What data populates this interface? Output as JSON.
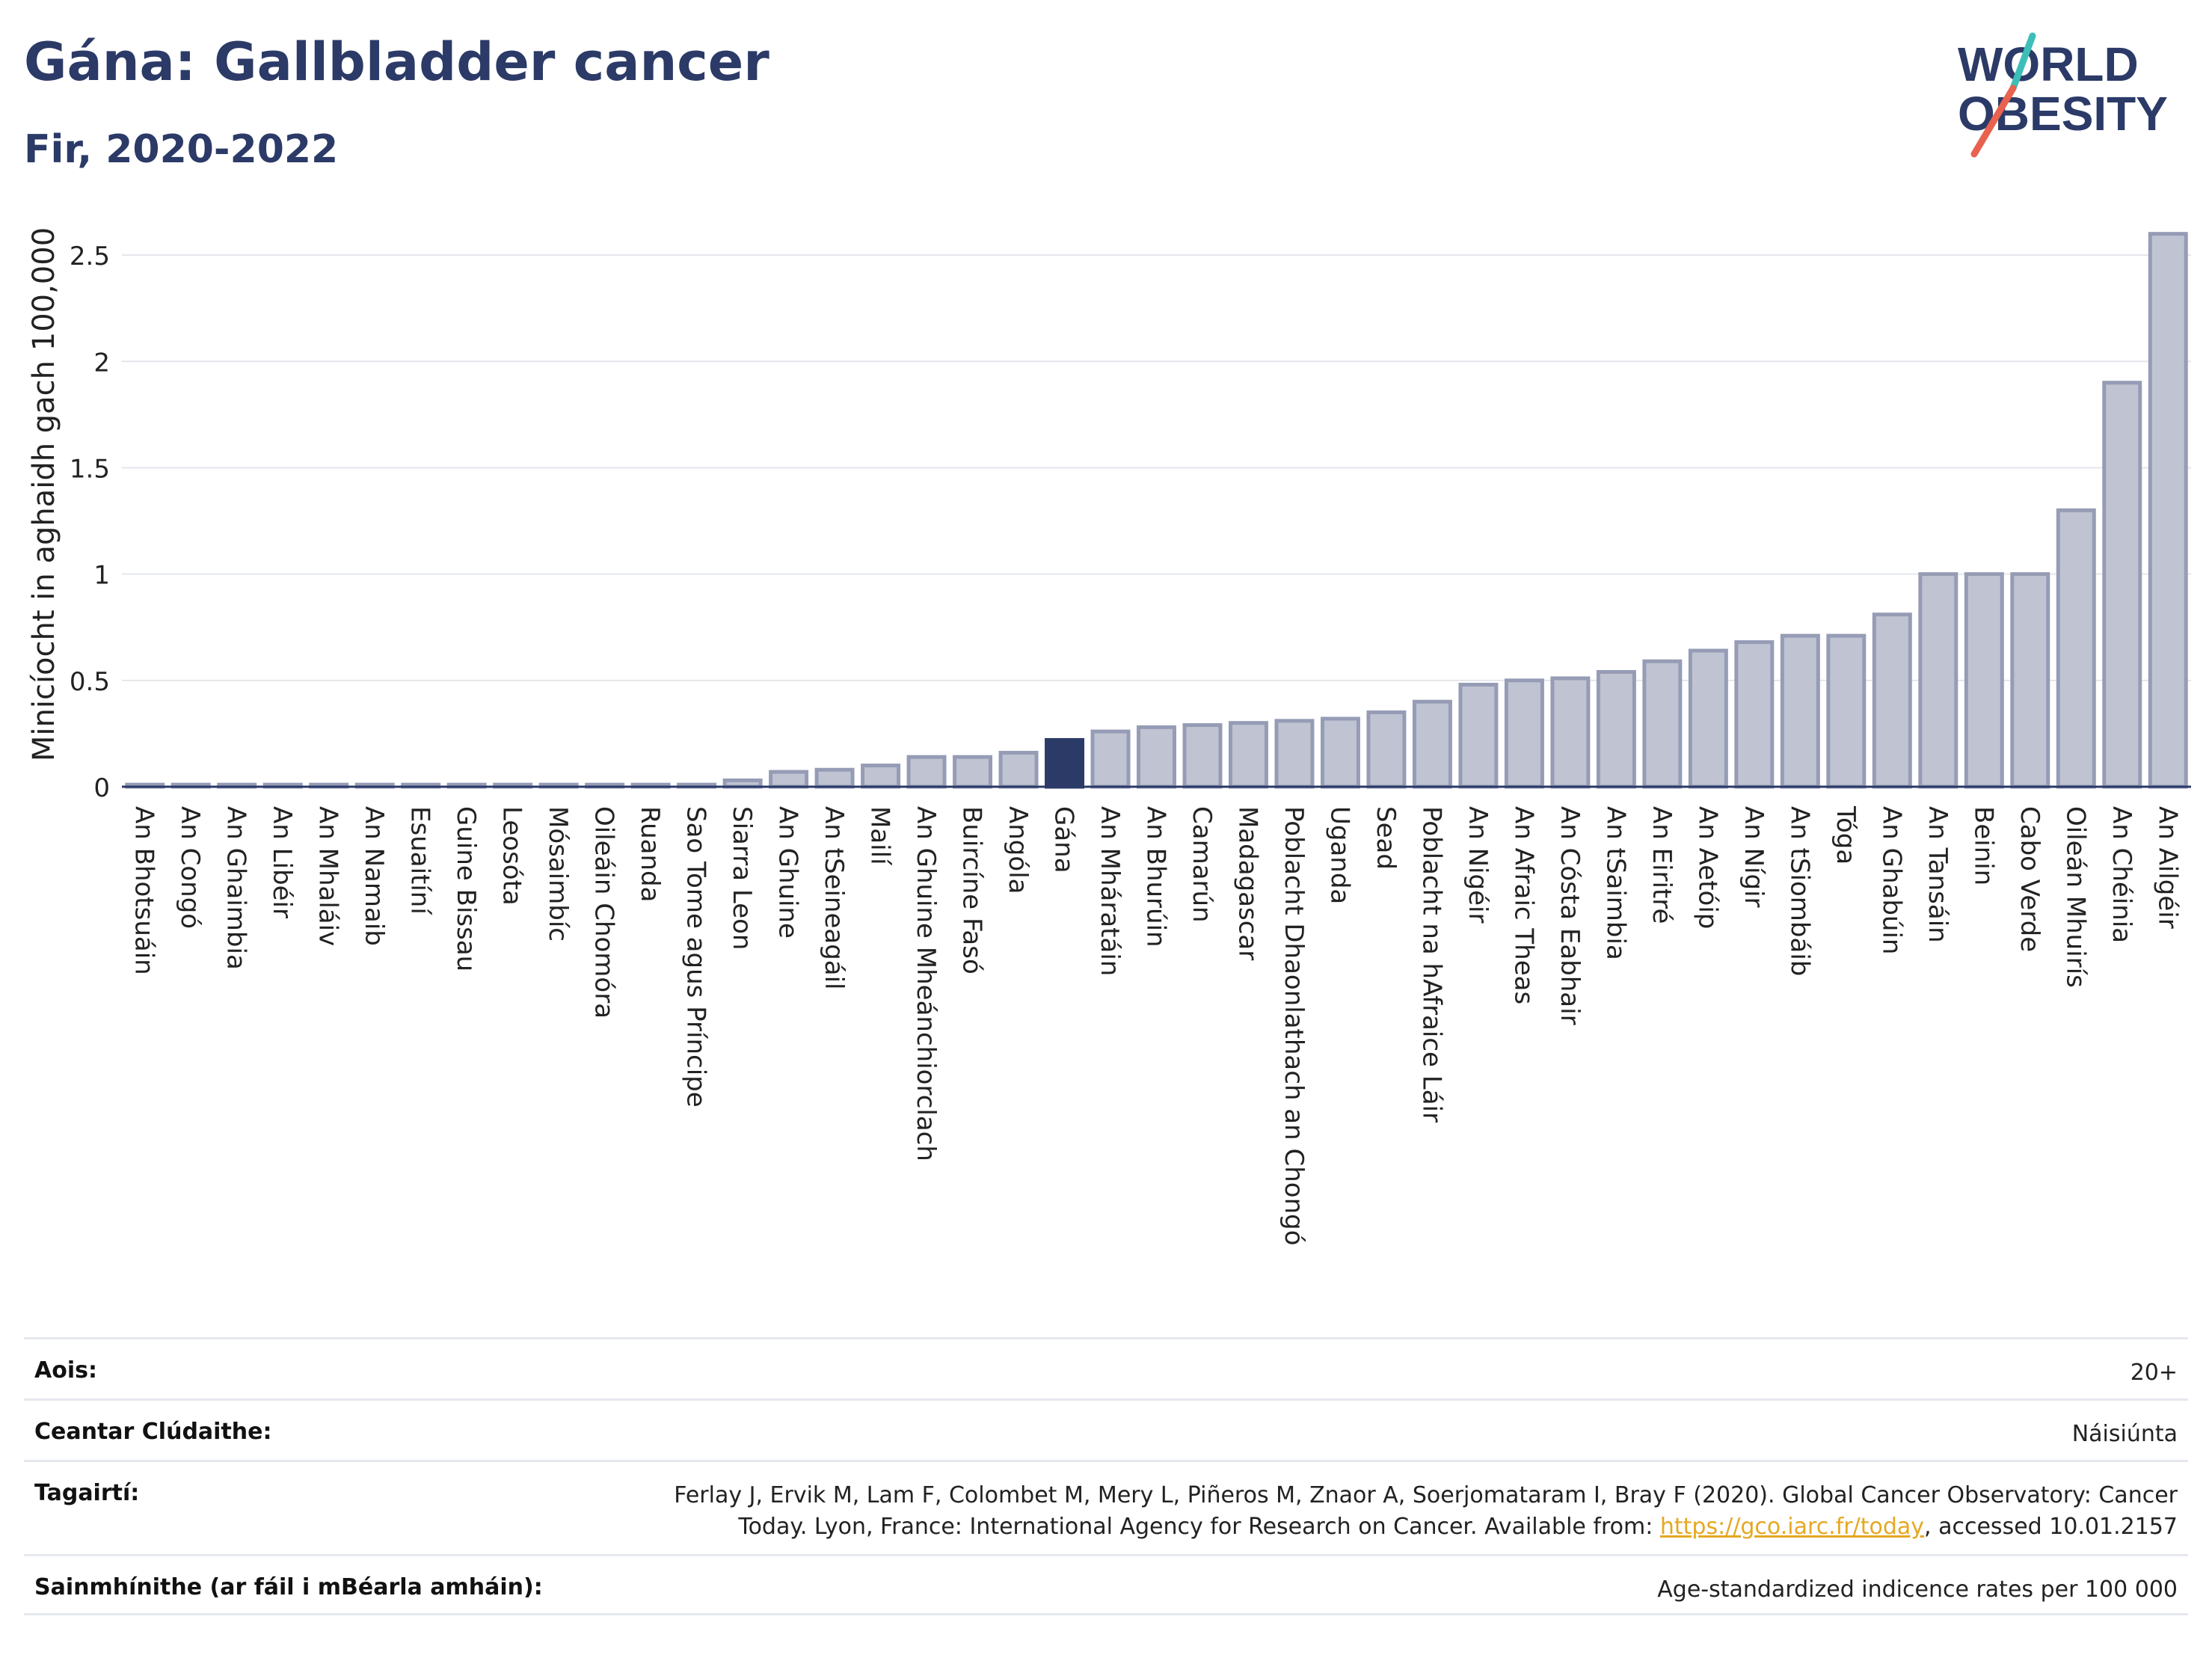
{
  "title": "Gána: Gallbladder cancer",
  "subtitle": "Fir, 2020-2022",
  "logo": {
    "line1": "WORLD",
    "line2": "OBESITY",
    "slash_colors": [
      "#3dbfb8",
      "#e8624f"
    ],
    "text_color": "#2b3a67"
  },
  "colors": {
    "bar": "#bfc3d2",
    "bar_border": "#969cb5",
    "highlight": "#2b3a67",
    "grid": "#e4e6ec",
    "axis": "#2b3a67"
  },
  "chart_data": {
    "type": "bar",
    "ylabel": "Minicíocht in aghaidh gach 100,000",
    "ylim": [
      0,
      2.75
    ],
    "yticks": [
      0,
      0.5,
      1,
      1.5,
      2,
      2.5
    ],
    "ytick_labels": [
      "0",
      "0.5",
      "1",
      "1.5",
      "2",
      "2.5"
    ],
    "grid": true,
    "highlight": "Gána",
    "categories": [
      "An Bhotsuáin",
      "An Congó",
      "An Ghaimbia",
      "An Libéir",
      "An Mhaláiv",
      "An Namaib",
      "Esuaitíní",
      "Guine Bissau",
      "Leosóta",
      "Mósaimbíc",
      "Oileáin Chomóra",
      "Ruanda",
      "Sao Tome agus Príncipe",
      "Siarra Leon",
      "An Ghuine",
      "An tSeineagáil",
      "Mailí",
      "An Ghuine Mheánchiorclach",
      "Buircíne Fasó",
      "Angóla",
      "Gána",
      "An Mháratáin",
      "An Bhurúin",
      "Camarún",
      "Madagascar",
      "Poblacht Dhaonlathach an Chongó",
      "Uganda",
      "Sead",
      "Poblacht na hAfraice Láir",
      "An Nigéir",
      "An Afraic Theas",
      "An Cósta Eabhair",
      "An tSaimbia",
      "An Eiritré",
      "An Aetóip",
      "An Nígir",
      "An tSiombáib",
      "Tóga",
      "An Ghabúin",
      "An Tansáin",
      "Beinin",
      "Cabo Verde",
      "Oileán Mhuirís",
      "An Chéinia",
      "An Ailgéir"
    ],
    "values": [
      0.01,
      0.01,
      0.01,
      0.01,
      0.01,
      0.01,
      0.01,
      0.01,
      0.01,
      0.01,
      0.01,
      0.01,
      0.01,
      0.03,
      0.07,
      0.08,
      0.1,
      0.14,
      0.14,
      0.16,
      0.22,
      0.26,
      0.28,
      0.29,
      0.3,
      0.31,
      0.32,
      0.35,
      0.4,
      0.48,
      0.5,
      0.51,
      0.54,
      0.59,
      0.64,
      0.68,
      0.71,
      0.71,
      0.81,
      1.0,
      1.0,
      1.0,
      1.3,
      1.9,
      2.6
    ]
  },
  "info": {
    "age_label": "Aois:",
    "age_value": "20+",
    "area_label": "Ceantar Clúdaithe:",
    "area_value": "Náisiúnta",
    "ref_label": "Tagairtí:",
    "ref_line1": "Ferlay J, Ervik M, Lam F, Colombet M, Mery L, Piñeros M, Znaor A, Soerjomataram I, Bray F (2020). Global Cancer Observatory: Cancer",
    "ref_line2a": "Today. Lyon, France: International Agency for Research on Cancer. Available from: ",
    "ref_link": "https://gco.iarc.fr/today",
    "ref_line2b": ", accessed 10.01.2157",
    "def_label": "Sainmhínithe (ar fáil i mBéarla amháin):",
    "def_value": "Age-standardized indicence rates per 100 000"
  }
}
